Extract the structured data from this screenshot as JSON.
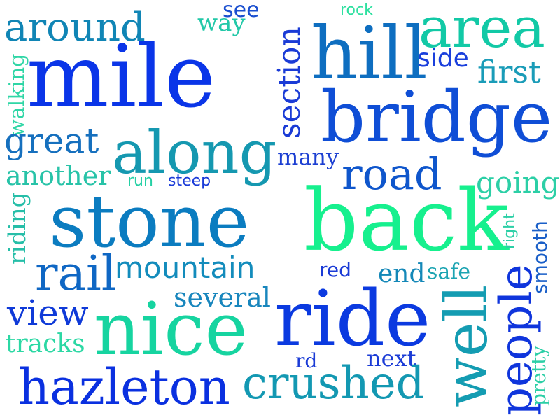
{
  "words": [
    {
      "text": "mile",
      "color": "#0a35e8"
    },
    {
      "text": "around",
      "color": "#1085b5"
    },
    {
      "text": "see",
      "color": "#1a4fd0"
    },
    {
      "text": "way",
      "color": "#22c8a8"
    },
    {
      "text": "rock",
      "color": "#2ee0a0"
    },
    {
      "text": "area",
      "color": "#12c9a6"
    },
    {
      "text": "hill",
      "color": "#0e6ec0"
    },
    {
      "text": "side",
      "color": "#1a3fdc"
    },
    {
      "text": "first",
      "color": "#1a9cb8"
    },
    {
      "text": "walking",
      "color": "#2fd6a6"
    },
    {
      "text": "section",
      "color": "#1a3bd6"
    },
    {
      "text": "bridge",
      "color": "#0f4ed6"
    },
    {
      "text": "great",
      "color": "#1670be"
    },
    {
      "text": "along",
      "color": "#1598b0"
    },
    {
      "text": "many",
      "color": "#1c3fd2"
    },
    {
      "text": "another",
      "color": "#28c3a8"
    },
    {
      "text": "run",
      "color": "#24d0a4"
    },
    {
      "text": "steep",
      "color": "#1a3bd8"
    },
    {
      "text": "road",
      "color": "#0f56cc"
    },
    {
      "text": "going",
      "color": "#2ccfa6"
    },
    {
      "text": "riding",
      "color": "#26bea8"
    },
    {
      "text": "stone",
      "color": "#0b7cc0"
    },
    {
      "text": "back",
      "color": "#16f08e"
    },
    {
      "text": "right",
      "color": "#2ccfa6"
    },
    {
      "text": "smooth",
      "color": "#1a5fc8"
    },
    {
      "text": "rail",
      "color": "#0f67c4"
    },
    {
      "text": "mountain",
      "color": "#138cbc"
    },
    {
      "text": "red",
      "color": "#1a3bd6"
    },
    {
      "text": "end",
      "color": "#1488b8"
    },
    {
      "text": "safe",
      "color": "#1ca4b2"
    },
    {
      "text": "several",
      "color": "#1886bd"
    },
    {
      "text": "view",
      "color": "#0f3ad8"
    },
    {
      "text": "nice",
      "color": "#16d4a0"
    },
    {
      "text": "ride",
      "color": "#0b3ae0"
    },
    {
      "text": "well",
      "color": "#149cb2"
    },
    {
      "text": "people",
      "color": "#0f35dc"
    },
    {
      "text": "pretty",
      "color": "#2ccfa6"
    },
    {
      "text": "tracks",
      "color": "#2cd8a4"
    },
    {
      "text": "rd",
      "color": "#1a3bd6"
    },
    {
      "text": "next",
      "color": "#1a3bd6"
    },
    {
      "text": "hazleton",
      "color": "#0a30e0"
    },
    {
      "text": "crushed",
      "color": "#1398b2"
    }
  ]
}
